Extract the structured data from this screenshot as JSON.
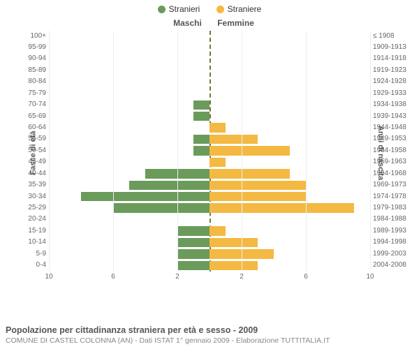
{
  "legend": {
    "male": {
      "label": "Stranieri",
      "color": "#6a9b5b"
    },
    "female": {
      "label": "Straniere",
      "color": "#f4b942"
    }
  },
  "titles": {
    "left_side": "Maschi",
    "right_side": "Femmine",
    "y_left": "Fasce di età",
    "y_right": "Anni di nascita"
  },
  "chart": {
    "type": "population-pyramid",
    "xmax": 10,
    "xticks": [
      10,
      6,
      2,
      2,
      6,
      10
    ],
    "bar_colors": {
      "male": "#6a9b5b",
      "female": "#f4b942"
    },
    "background_color": "#ffffff",
    "grid_color": "#eeeeee",
    "center_line_color": "#777733",
    "rows": [
      {
        "age": "100+",
        "birth": "≤ 1908",
        "m": 0,
        "f": 0
      },
      {
        "age": "95-99",
        "birth": "1909-1913",
        "m": 0,
        "f": 0
      },
      {
        "age": "90-94",
        "birth": "1914-1918",
        "m": 0,
        "f": 0
      },
      {
        "age": "85-89",
        "birth": "1919-1923",
        "m": 0,
        "f": 0
      },
      {
        "age": "80-84",
        "birth": "1924-1928",
        "m": 0,
        "f": 0
      },
      {
        "age": "75-79",
        "birth": "1929-1933",
        "m": 0,
        "f": 0
      },
      {
        "age": "70-74",
        "birth": "1934-1938",
        "m": 1,
        "f": 0
      },
      {
        "age": "65-69",
        "birth": "1939-1943",
        "m": 1,
        "f": 0
      },
      {
        "age": "60-64",
        "birth": "1944-1948",
        "m": 0,
        "f": 1
      },
      {
        "age": "55-59",
        "birth": "1949-1953",
        "m": 1,
        "f": 3
      },
      {
        "age": "50-54",
        "birth": "1954-1958",
        "m": 1,
        "f": 5
      },
      {
        "age": "45-49",
        "birth": "1959-1963",
        "m": 0,
        "f": 1
      },
      {
        "age": "40-44",
        "birth": "1964-1968",
        "m": 4,
        "f": 5
      },
      {
        "age": "35-39",
        "birth": "1969-1973",
        "m": 5,
        "f": 6
      },
      {
        "age": "30-34",
        "birth": "1974-1978",
        "m": 8,
        "f": 6
      },
      {
        "age": "25-29",
        "birth": "1979-1983",
        "m": 6,
        "f": 9
      },
      {
        "age": "20-24",
        "birth": "1984-1988",
        "m": 0,
        "f": 0
      },
      {
        "age": "15-19",
        "birth": "1989-1993",
        "m": 2,
        "f": 1
      },
      {
        "age": "10-14",
        "birth": "1994-1998",
        "m": 2,
        "f": 3
      },
      {
        "age": "5-9",
        "birth": "1999-2003",
        "m": 2,
        "f": 4
      },
      {
        "age": "0-4",
        "birth": "2004-2008",
        "m": 2,
        "f": 3
      }
    ]
  },
  "footer": {
    "title": "Popolazione per cittadinanza straniera per età e sesso - 2009",
    "subtitle": "COMUNE DI CASTEL COLONNA (AN) - Dati ISTAT 1° gennaio 2009 - Elaborazione TUTTITALIA.IT"
  }
}
